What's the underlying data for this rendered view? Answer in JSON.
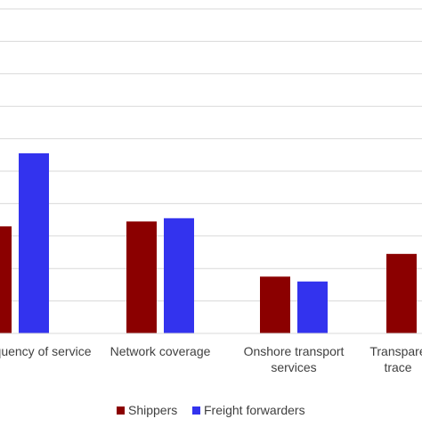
{
  "chart_data": {
    "type": "bar",
    "title": "",
    "xlabel": "",
    "ylabel": "",
    "categories": [
      [
        "quency of service"
      ],
      [
        "Network coverage"
      ],
      [
        "Onshore transport",
        "services"
      ],
      [
        "Transpare",
        "trace"
      ]
    ],
    "series": [
      {
        "name": "Shippers",
        "color": "#8b0000",
        "values": [
          3.3,
          3.45,
          1.75,
          2.45
        ]
      },
      {
        "name": "Freight forwarders",
        "color": "#3333ee",
        "values": [
          5.55,
          3.55,
          1.6,
          null
        ]
      }
    ],
    "ylim": [
      0,
      10
    ],
    "gridlines": [
      1,
      2,
      3,
      4,
      5,
      6,
      7,
      8,
      9,
      10
    ],
    "grid": true,
    "legend_position": "bottom"
  }
}
